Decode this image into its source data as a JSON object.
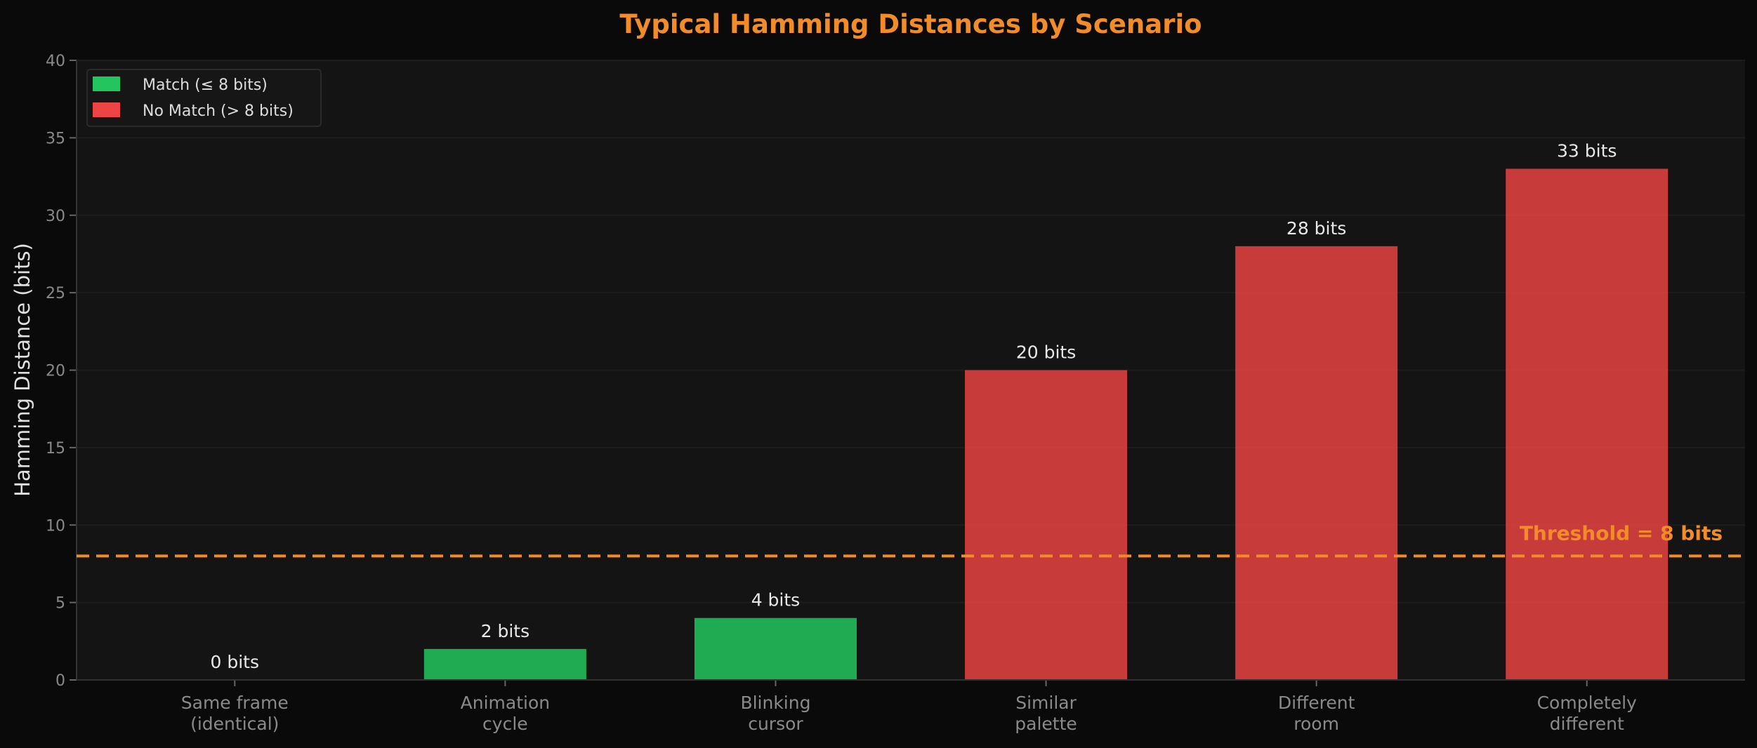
{
  "chart_data": {
    "type": "bar",
    "title": "Typical Hamming Distances by Scenario",
    "xlabel": "",
    "ylabel": "Hamming Distance (bits)",
    "categories": [
      "Same frame\n(identical)",
      "Animation\ncycle",
      "Blinking\ncursor",
      "Similar\npalette",
      "Different\nroom",
      "Completely\ndifferent"
    ],
    "values": [
      0,
      2,
      4,
      20,
      28,
      33
    ],
    "value_labels": [
      "0 bits",
      "2 bits",
      "4 bits",
      "20 bits",
      "28 bits",
      "33 bits"
    ],
    "ylim": [
      0,
      40
    ],
    "yticks": [
      0,
      5,
      10,
      15,
      20,
      25,
      30,
      35,
      40
    ],
    "grid": true,
    "threshold": {
      "value": 8,
      "label": "Threshold = 8 bits",
      "color": "#f28c28",
      "style": "dashed"
    },
    "legend": {
      "placement": "top-left",
      "entries": [
        {
          "label": "Match (≤ 8 bits)",
          "color": "#22c55e"
        },
        {
          "label": "No Match (> 8 bits)",
          "color": "#ef4444"
        }
      ]
    },
    "colors": {
      "match": "#22c55e",
      "no_match": "#ef4444",
      "title": "#f28c28",
      "background": "#0a0a0a",
      "plot_background": "#141414"
    }
  }
}
